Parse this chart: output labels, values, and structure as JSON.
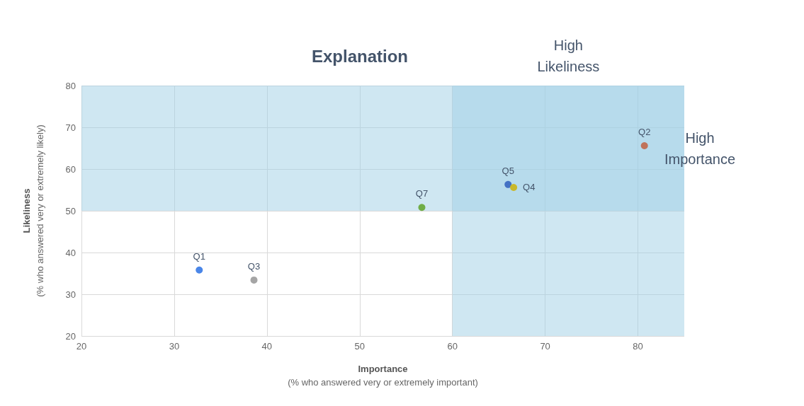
{
  "chart_data": {
    "type": "scatter",
    "title": "Explanation",
    "xlabel": "Importance\n(% who answered very or extremely important)",
    "ylabel": "Likeliness\n(% who answered very or extremely likely)",
    "xlim": [
      20,
      85
    ],
    "xticks": [
      20,
      30,
      40,
      50,
      60,
      70,
      80
    ],
    "ylim": [
      20,
      80
    ],
    "yticks": [
      20,
      30,
      40,
      50,
      60,
      70,
      80
    ],
    "grid": true,
    "legend": false,
    "marker": "circle",
    "series": [
      {
        "name": "Q1",
        "color": "#4a86e8",
        "x": [
          32.7
        ],
        "values": [
          35.8
        ]
      },
      {
        "name": "Q3",
        "color": "#a5a5a5",
        "x": [
          38.6
        ],
        "values": [
          33.4
        ]
      },
      {
        "name": "Q7",
        "color": "#70ad47",
        "x": [
          56.7
        ],
        "values": [
          50.8
        ]
      },
      {
        "name": "Q5",
        "color": "#4472c4",
        "x": [
          66.0
        ],
        "values": [
          56.3
        ]
      },
      {
        "name": "Q4",
        "color": "#c9b82a",
        "x": [
          66.6
        ],
        "values": [
          55.6
        ]
      },
      {
        "name": "Q2",
        "color": "#c0735a",
        "x": [
          80.7
        ],
        "values": [
          65.6
        ]
      }
    ],
    "bands": [
      {
        "axis": "x",
        "from": 60,
        "to": 85,
        "label": "High\nLikeliness",
        "color": "#9fd0e6"
      },
      {
        "axis": "y",
        "from": 50,
        "to": 80,
        "label": "High\nImportance",
        "color": "#9fd0e6"
      }
    ]
  }
}
